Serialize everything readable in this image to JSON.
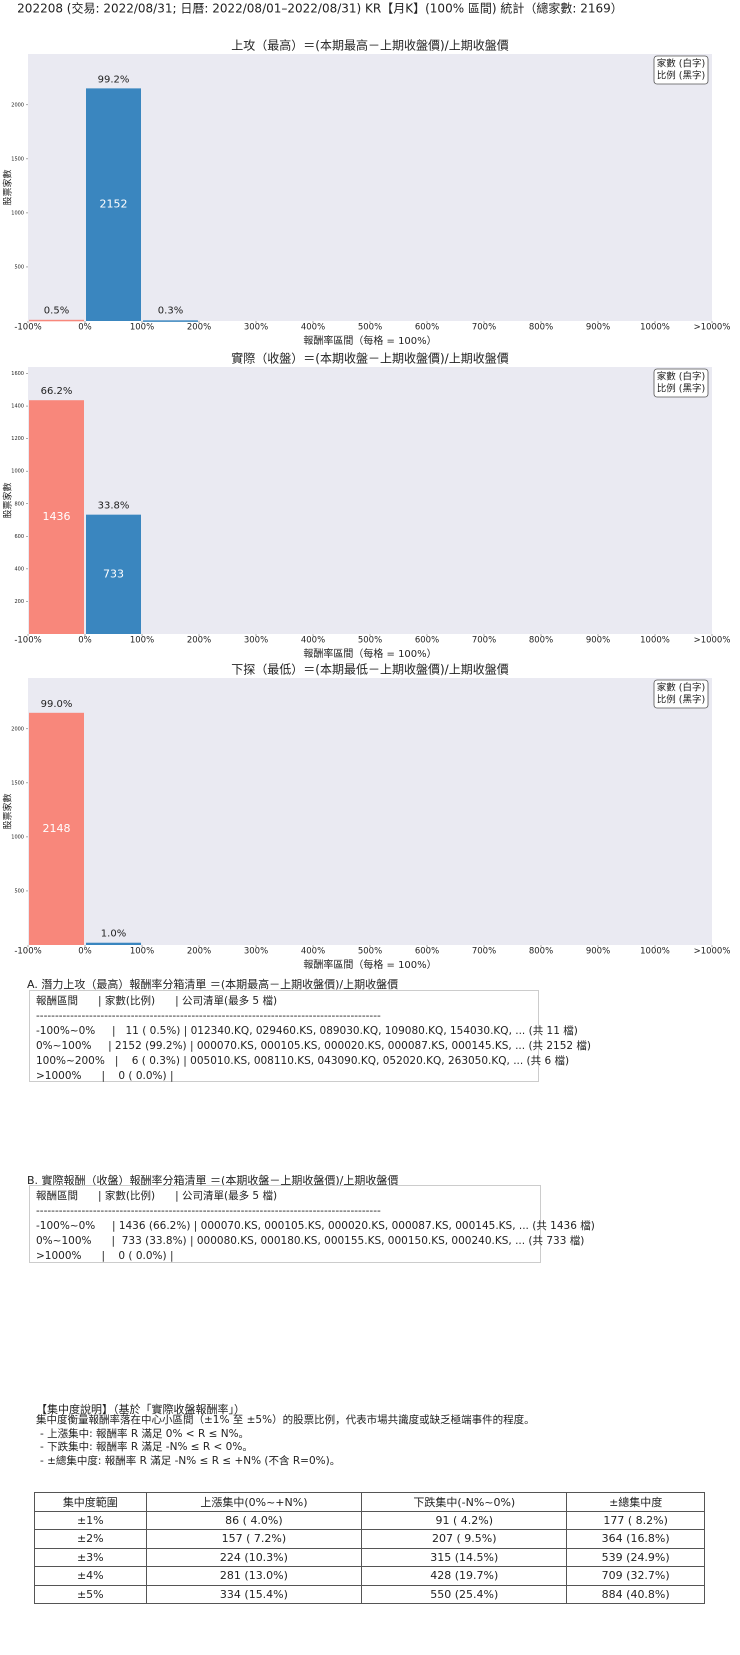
{
  "title": "202208 (交易: 2022/08/31; 日曆: 2022/08/01–2022/08/31) KR【月K】(100% 區間) 統計（總家數: 2169）",
  "chart_data": [
    {
      "type": "histogram",
      "title": "上攻（最高）＝(本期最高－上期收盤價)/上期收盤價",
      "xlabel": "報酬率區間（每格 = 100%）",
      "ylabel": "股票家數",
      "bins": [
        -100,
        0,
        100,
        200,
        300,
        400,
        500,
        600,
        700,
        800,
        900,
        1000,
        1100
      ],
      "values": [
        11,
        2152,
        6,
        0,
        0,
        0,
        0,
        0,
        0,
        0,
        0,
        0
      ],
      "share_labels": [
        "0.5%",
        "99.2%",
        "0.3%",
        null,
        null,
        null,
        null,
        null,
        null,
        null,
        null,
        null
      ],
      "colors": [
        "#f8877b",
        "#3a86bf",
        "#3a86bf",
        "#3a86bf",
        "#3a86bf",
        "#3a86bf",
        "#3a86bf",
        "#3a86bf",
        "#3a86bf",
        "#3a86bf",
        "#3a86bf",
        "#3a86bf"
      ],
      "xlim": [
        -100,
        1100
      ],
      "xticks": [
        {
          "value": -100,
          "label": "-100%"
        },
        {
          "value": 0,
          "label": "0%"
        },
        {
          "value": 100,
          "label": "100%"
        },
        {
          "value": 200,
          "label": "200%"
        },
        {
          "value": 300,
          "label": "300%"
        },
        {
          "value": 400,
          "label": "400%"
        },
        {
          "value": 500,
          "label": "500%"
        },
        {
          "value": 600,
          "label": "600%"
        },
        {
          "value": 700,
          "label": "700%"
        },
        {
          "value": 800,
          "label": "800%"
        },
        {
          "value": 900,
          "label": "900%"
        },
        {
          "value": 1000,
          "label": "1000%"
        },
        {
          "value": 1100,
          "label": ">1000%"
        }
      ],
      "ylim": [
        0,
        2470
      ],
      "yticks": [
        500,
        1000,
        1500,
        2000
      ],
      "legend_lines": [
        "家數 (白字)",
        "比例 (黑字)"
      ],
      "legend": "upper right"
    },
    {
      "type": "histogram",
      "title": "實際（收盤）＝(本期收盤－上期收盤價)/上期收盤價",
      "xlabel": "報酬率區間（每格 = 100%）",
      "ylabel": "股票家數",
      "bins": [
        -100,
        0,
        100,
        200,
        300,
        400,
        500,
        600,
        700,
        800,
        900,
        1000,
        1100
      ],
      "values": [
        1436,
        733,
        0,
        0,
        0,
        0,
        0,
        0,
        0,
        0,
        0,
        0
      ],
      "share_labels": [
        "66.2%",
        "33.8%",
        null,
        null,
        null,
        null,
        null,
        null,
        null,
        null,
        null,
        null
      ],
      "colors": [
        "#f8877b",
        "#3a86bf",
        "#3a86bf",
        "#3a86bf",
        "#3a86bf",
        "#3a86bf",
        "#3a86bf",
        "#3a86bf",
        "#3a86bf",
        "#3a86bf",
        "#3a86bf",
        "#3a86bf"
      ],
      "xlim": [
        -100,
        1100
      ],
      "xticks": [
        {
          "value": -100,
          "label": "-100%"
        },
        {
          "value": 0,
          "label": "0%"
        },
        {
          "value": 100,
          "label": "100%"
        },
        {
          "value": 200,
          "label": "200%"
        },
        {
          "value": 300,
          "label": "300%"
        },
        {
          "value": 400,
          "label": "400%"
        },
        {
          "value": 500,
          "label": "500%"
        },
        {
          "value": 600,
          "label": "600%"
        },
        {
          "value": 700,
          "label": "700%"
        },
        {
          "value": 800,
          "label": "800%"
        },
        {
          "value": 900,
          "label": "900%"
        },
        {
          "value": 1000,
          "label": "1000%"
        },
        {
          "value": 1100,
          "label": ">1000%"
        }
      ],
      "ylim": [
        0,
        1640
      ],
      "yticks": [
        200,
        400,
        600,
        800,
        1000,
        1200,
        1400,
        1600
      ],
      "legend_lines": [
        "家數 (白字)",
        "比例 (黑字)"
      ],
      "legend": "upper right"
    },
    {
      "type": "histogram",
      "title": "下探（最低）＝(本期最低－上期收盤價)/上期收盤價",
      "xlabel": "報酬率區間（每格 = 100%）",
      "ylabel": "股票家數",
      "bins": [
        -100,
        0,
        100,
        200,
        300,
        400,
        500,
        600,
        700,
        800,
        900,
        1000,
        1100
      ],
      "values": [
        2148,
        21,
        0,
        0,
        0,
        0,
        0,
        0,
        0,
        0,
        0,
        0
      ],
      "share_labels": [
        "99.0%",
        "1.0%",
        null,
        null,
        null,
        null,
        null,
        null,
        null,
        null,
        null,
        null
      ],
      "colors": [
        "#f8877b",
        "#3a86bf",
        "#3a86bf",
        "#3a86bf",
        "#3a86bf",
        "#3a86bf",
        "#3a86bf",
        "#3a86bf",
        "#3a86bf",
        "#3a86bf",
        "#3a86bf",
        "#3a86bf"
      ],
      "xlim": [
        -100,
        1100
      ],
      "xticks": [
        {
          "value": -100,
          "label": "-100%"
        },
        {
          "value": 0,
          "label": "0%"
        },
        {
          "value": 100,
          "label": "100%"
        },
        {
          "value": 200,
          "label": "200%"
        },
        {
          "value": 300,
          "label": "300%"
        },
        {
          "value": 400,
          "label": "400%"
        },
        {
          "value": 500,
          "label": "500%"
        },
        {
          "value": 600,
          "label": "600%"
        },
        {
          "value": 700,
          "label": "700%"
        },
        {
          "value": 800,
          "label": "800%"
        },
        {
          "value": 900,
          "label": "900%"
        },
        {
          "value": 1000,
          "label": "1000%"
        },
        {
          "value": 1100,
          "label": ">1000%"
        }
      ],
      "ylim": [
        0,
        2470
      ],
      "yticks": [
        500,
        1000,
        1500,
        2000
      ],
      "legend_lines": [
        "家數 (白字)",
        "比例 (黑字)"
      ],
      "legend": "upper right"
    }
  ],
  "list_a": {
    "heading": "A. 潛力上攻（最高）報酬率分箱清單 ＝(本期最高－上期收盤價)/上期收盤價",
    "lines": [
      "報酬區間      | 家數(比例)      | 公司清單(最多 5 檔)",
      "-------------------------------------------------------------------------------------------",
      "-100%~0%     |   11 ( 0.5%) | 012340.KQ, 029460.KS, 089030.KQ, 109080.KQ, 154030.KQ, ... (共 11 檔)",
      "0%~100%     | 2152 (99.2%) | 000070.KS, 000105.KS, 000020.KS, 000087.KS, 000145.KS, ... (共 2152 檔)",
      "100%~200%   |    6 ( 0.3%) | 005010.KS, 008110.KS, 043090.KQ, 052020.KQ, 263050.KQ, ... (共 6 檔)",
      ">1000%      |    0 ( 0.0%) |"
    ]
  },
  "list_b": {
    "heading": "B. 實際報酬（收盤）報酬率分箱清單 ＝(本期收盤－上期收盤價)/上期收盤價",
    "lines": [
      "報酬區間      | 家數(比例)      | 公司清單(最多 5 檔)",
      "-------------------------------------------------------------------------------------------",
      "-100%~0%     | 1436 (66.2%) | 000070.KS, 000105.KS, 000020.KS, 000087.KS, 000145.KS, ... (共 1436 檔)",
      "0%~100%      |  733 (33.8%) | 000080.KS, 000180.KS, 000155.KS, 000150.KS, 000240.KS, ... (共 733 檔)",
      ">1000%      |    0 ( 0.0%) |"
    ]
  },
  "concentration": {
    "heading": "【集中度說明】（基於「實際收盤報酬率」）",
    "lines": [
      "集中度衡量報酬率落在中心小區間（±1% 至 ±5%）的股票比例，代表市場共識度或缺乏極端事件的程度。",
      "- 上漲集中: 報酬率 R 滿足 0% < R ≤ N%。",
      "- 下跌集中: 報酬率 R 滿足 -N% ≤ R < 0%。",
      "- ±總集中度: 報酬率 R 滿足 -N% ≤ R ≤ +N% (不含 R=0%)。"
    ],
    "table": {
      "header": [
        "集中度範圍",
        "上漲集中(0%~+N%)",
        "下跌集中(-N%~0%)",
        "±總集中度"
      ],
      "rows": [
        [
          "±1%",
          "86 ( 4.0%)",
          "91 ( 4.2%)",
          "177 ( 8.2%)"
        ],
        [
          "±2%",
          "157 ( 7.2%)",
          "207 ( 9.5%)",
          "364 (16.8%)"
        ],
        [
          "±3%",
          "224 (10.3%)",
          "315 (14.5%)",
          "539 (24.9%)"
        ],
        [
          "±4%",
          "281 (13.0%)",
          "428 (19.7%)",
          "709 (32.7%)"
        ],
        [
          "±5%",
          "334 (15.4%)",
          "550 (25.4%)",
          "884 (40.8%)"
        ]
      ]
    }
  }
}
